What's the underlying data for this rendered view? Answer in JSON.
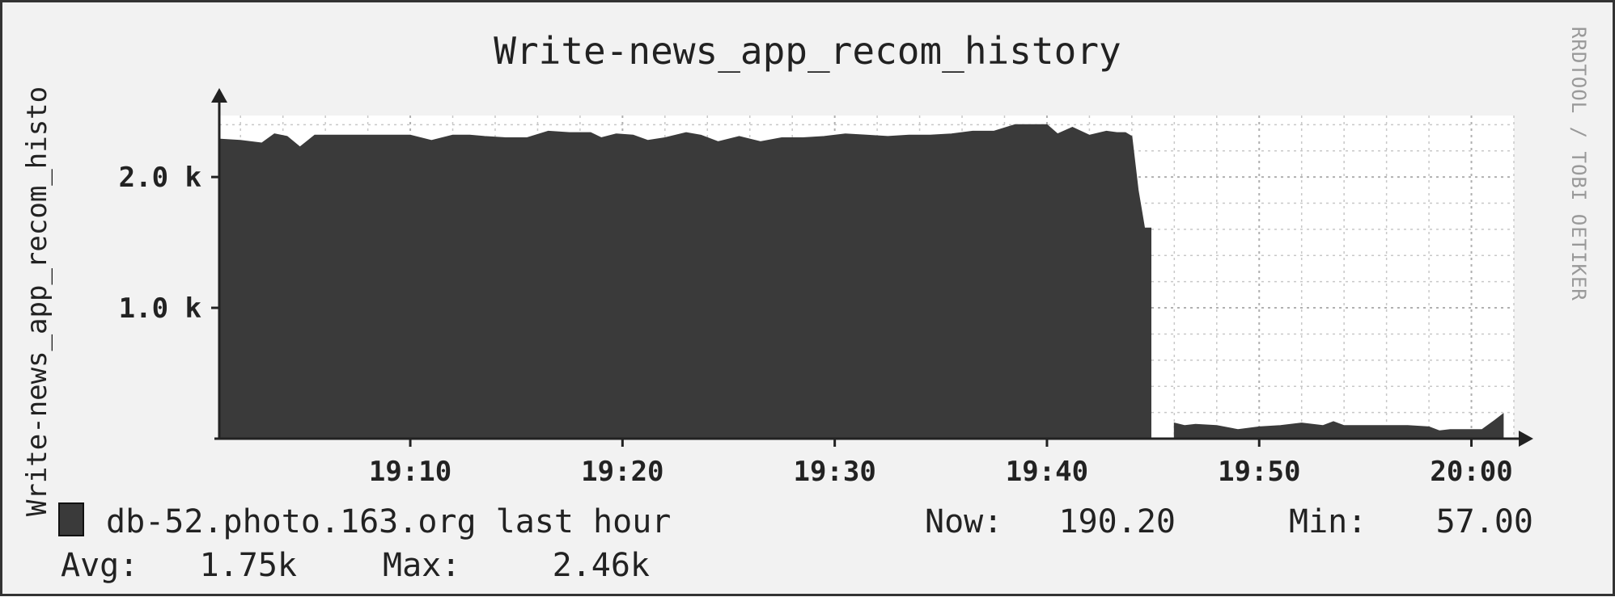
{
  "chart_data": {
    "type": "area",
    "title": "Write-news_app_recom_history",
    "ylabel": "Write-news_app_recom_histo",
    "watermark": "RRDTOOL / TOBI OETIKER",
    "x_ticks": [
      "19:10",
      "19:20",
      "19:30",
      "19:40",
      "19:50",
      "20:00"
    ],
    "y_ticks": [
      {
        "value": 1000,
        "label": "1.0 k"
      },
      {
        "value": 2000,
        "label": "2.0 k"
      }
    ],
    "ylim": [
      0,
      2470
    ],
    "xlim_minutes": [
      1,
      62
    ],
    "grid": true,
    "series": [
      {
        "name": "db-52.photo.163.org last hour",
        "color": "#3a3a3a",
        "x": [
          1.0,
          2.0,
          3.0,
          3.6,
          4.2,
          4.8,
          5.5,
          6.3,
          7.0,
          8.0,
          9.0,
          10.0,
          11.0,
          12.0,
          12.8,
          13.5,
          14.5,
          15.5,
          16.5,
          17.5,
          18.5,
          19.0,
          19.7,
          20.5,
          21.2,
          22.0,
          23.0,
          23.7,
          24.5,
          25.5,
          26.5,
          27.5,
          28.5,
          29.5,
          30.5,
          31.5,
          32.5,
          33.5,
          34.5,
          35.5,
          36.5,
          37.5,
          38.5,
          39.0,
          40.0,
          40.5,
          41.2,
          42.0,
          42.8,
          43.3,
          43.7,
          44.0,
          44.3,
          44.6,
          44.9,
          45.0,
          45.8,
          46.0,
          46.5,
          47.0,
          48.0,
          49.0,
          50.0,
          51.0,
          52.0,
          53.0,
          53.5,
          54.0,
          55.0,
          56.0,
          57.0,
          58.0,
          58.5,
          59.0,
          60.0,
          60.5,
          61.1,
          61.5
        ],
        "y": [
          2290,
          2280,
          2260,
          2330,
          2310,
          2230,
          2320,
          2320,
          2320,
          2320,
          2320,
          2320,
          2280,
          2320,
          2320,
          2310,
          2300,
          2300,
          2350,
          2340,
          2340,
          2300,
          2330,
          2320,
          2280,
          2300,
          2340,
          2320,
          2270,
          2310,
          2270,
          2300,
          2300,
          2310,
          2330,
          2320,
          2310,
          2320,
          2320,
          2330,
          2350,
          2350,
          2400,
          2400,
          2400,
          2330,
          2380,
          2320,
          2350,
          2340,
          2340,
          2310,
          1900,
          1610,
          1610,
          0,
          0,
          120,
          100,
          110,
          100,
          70,
          90,
          100,
          120,
          100,
          130,
          100,
          100,
          100,
          100,
          90,
          60,
          70,
          70,
          70,
          140,
          190
        ]
      }
    ]
  },
  "legend": {
    "series_label": "db-52.photo.163.org last hour",
    "now_label": "Now:",
    "now_value": "190.20",
    "min_label": "Min:",
    "min_value": "57.00",
    "avg_label": "Avg:",
    "avg_value": "1.75k",
    "max_label": "Max:",
    "max_value": "2.46k"
  }
}
